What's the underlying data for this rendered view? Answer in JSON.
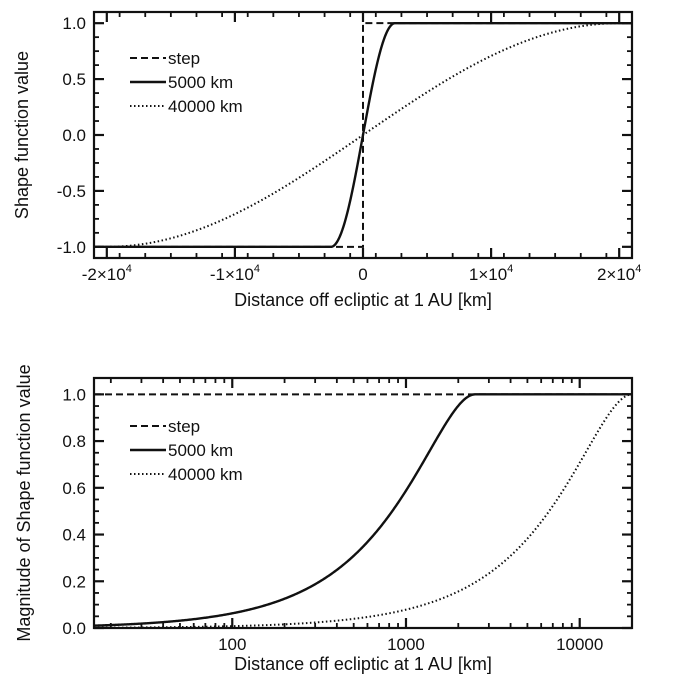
{
  "chart_data": [
    {
      "type": "line",
      "xlabel": "Distance off ecliptic at 1 AU [km]",
      "ylabel": "Shape function value",
      "xlim": [
        -21000,
        21000
      ],
      "ylim": [
        -1.1,
        1.1
      ],
      "x_ticks": [
        {
          "value": -20000,
          "base": "-2×10",
          "exp": "4"
        },
        {
          "value": -10000,
          "base": "-1×10",
          "exp": "4"
        },
        {
          "value": 0,
          "base": "0",
          "exp": ""
        },
        {
          "value": 10000,
          "base": "1×10",
          "exp": "4"
        },
        {
          "value": 20000,
          "base": "2×10",
          "exp": "4"
        }
      ],
      "y_ticks": [
        {
          "value": -1.0,
          "label": "-1.0"
        },
        {
          "value": -0.5,
          "label": "-0.5"
        },
        {
          "value": 0.0,
          "label": "0.0"
        },
        {
          "value": 0.5,
          "label": "0.5"
        },
        {
          "value": 1.0,
          "label": "1.0"
        }
      ],
      "series": [
        {
          "name": "step",
          "style": "dashed",
          "width_km": 0
        },
        {
          "name": "5000 km",
          "style": "solid",
          "width_km": 5000
        },
        {
          "name": "40000 km",
          "style": "dotted",
          "width_km": 40000
        }
      ]
    },
    {
      "type": "line",
      "xlabel": "Distance off ecliptic at 1 AU [km]",
      "ylabel": "Magnitude of Shape function value",
      "xscale": "log",
      "xlim": [
        16,
        20000
      ],
      "ylim": [
        0,
        1.07
      ],
      "x_ticks": [
        {
          "value": 100,
          "label": "100"
        },
        {
          "value": 1000,
          "label": "1000"
        },
        {
          "value": 10000,
          "label": "10000"
        }
      ],
      "y_ticks": [
        {
          "value": 0.0,
          "label": "0.0"
        },
        {
          "value": 0.2,
          "label": "0.2"
        },
        {
          "value": 0.4,
          "label": "0.4"
        },
        {
          "value": 0.6,
          "label": "0.6"
        },
        {
          "value": 0.8,
          "label": "0.8"
        },
        {
          "value": 1.0,
          "label": "1.0"
        }
      ],
      "series": [
        {
          "name": "step",
          "style": "dashed",
          "width_km": 0
        },
        {
          "name": "5000 km",
          "style": "solid",
          "width_km": 5000
        },
        {
          "name": "40000 km",
          "style": "dotted",
          "width_km": 40000
        }
      ]
    }
  ]
}
